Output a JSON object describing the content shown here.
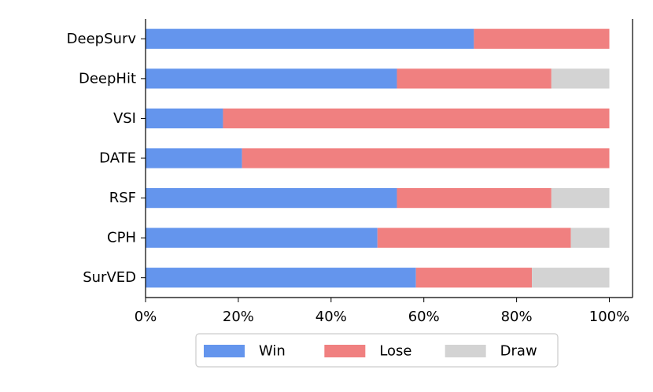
{
  "chart_data": {
    "type": "bar",
    "orientation": "horizontal",
    "stacked": true,
    "categories": [
      "DeepSurv",
      "DeepHit",
      "VSI",
      "DATE",
      "RSF",
      "CPH",
      "SurVED"
    ],
    "series": [
      {
        "name": "Win",
        "color": "#6495ED",
        "values": [
          70.8,
          54.2,
          16.7,
          20.8,
          54.2,
          50.0,
          58.3
        ]
      },
      {
        "name": "Lose",
        "color": "#F08080",
        "values": [
          29.2,
          33.3,
          83.3,
          79.2,
          33.3,
          41.7,
          25.0
        ]
      },
      {
        "name": "Draw",
        "color": "#D3D3D3",
        "values": [
          0.0,
          12.5,
          0.0,
          0.0,
          12.5,
          8.3,
          16.7
        ]
      }
    ],
    "xlim": [
      0,
      105
    ],
    "xticks": [
      0,
      20,
      40,
      60,
      80,
      100
    ],
    "xtick_labels": [
      "0%",
      "20%",
      "40%",
      "60%",
      "80%",
      "100%"
    ],
    "xlabel": "",
    "ylabel": "",
    "title": "",
    "grid": false,
    "legend_position": "bottom-center"
  }
}
